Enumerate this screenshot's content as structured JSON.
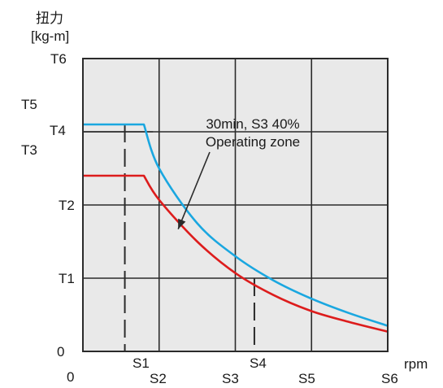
{
  "chart_data": {
    "type": "line",
    "ylabel": "扭力",
    "yunit": "[kg-m]",
    "xunit": "rpm",
    "annotation": [
      "30min, S3 40%",
      "Operating zone"
    ],
    "grid": true,
    "background_color": "#e9e9e9",
    "y_ticks": [
      {
        "label": "0",
        "value": 0
      },
      {
        "label": "T1",
        "value": 1
      },
      {
        "label": "T2",
        "value": 2
      },
      {
        "label": "T3",
        "value": 2.85
      },
      {
        "label": "T4",
        "value": 3.0
      },
      {
        "label": "T5",
        "value": 3.35
      },
      {
        "label": "T6",
        "value": 4
      }
    ],
    "x_ticks": [
      {
        "label": "0",
        "value": 0
      },
      {
        "label": "S1",
        "value": 0.55
      },
      {
        "label": "S2",
        "value": 1
      },
      {
        "label": "S3",
        "value": 2
      },
      {
        "label": "S4",
        "value": 2.25
      },
      {
        "label": "S5",
        "value": 3
      },
      {
        "label": "S6",
        "value": 4
      }
    ],
    "xlim": [
      0,
      4
    ],
    "ylim": [
      0,
      4
    ],
    "series": [
      {
        "color": "#1aa7e0",
        "x": [
          0,
          0.8,
          1.0,
          1.5,
          2.0,
          2.5,
          3.0,
          3.5,
          4.0
        ],
        "y": [
          3.1,
          3.1,
          2.5,
          1.75,
          1.3,
          0.97,
          0.72,
          0.52,
          0.35
        ]
      },
      {
        "color": "#dd1c1c",
        "x": [
          0,
          0.8,
          1.0,
          1.5,
          2.0,
          2.5,
          3.0,
          3.5,
          4.0
        ],
        "y": [
          2.4,
          2.4,
          2.07,
          1.5,
          1.07,
          0.77,
          0.55,
          0.4,
          0.27
        ]
      }
    ],
    "dashed_markers": [
      {
        "x": 0.55,
        "y_top": 3.1
      },
      {
        "x": 2.25,
        "y_top": 1.0
      }
    ],
    "colors": {
      "axis": "#2b2b2b",
      "grid": "#2b2b2b",
      "text": "#1a1a1a"
    }
  }
}
